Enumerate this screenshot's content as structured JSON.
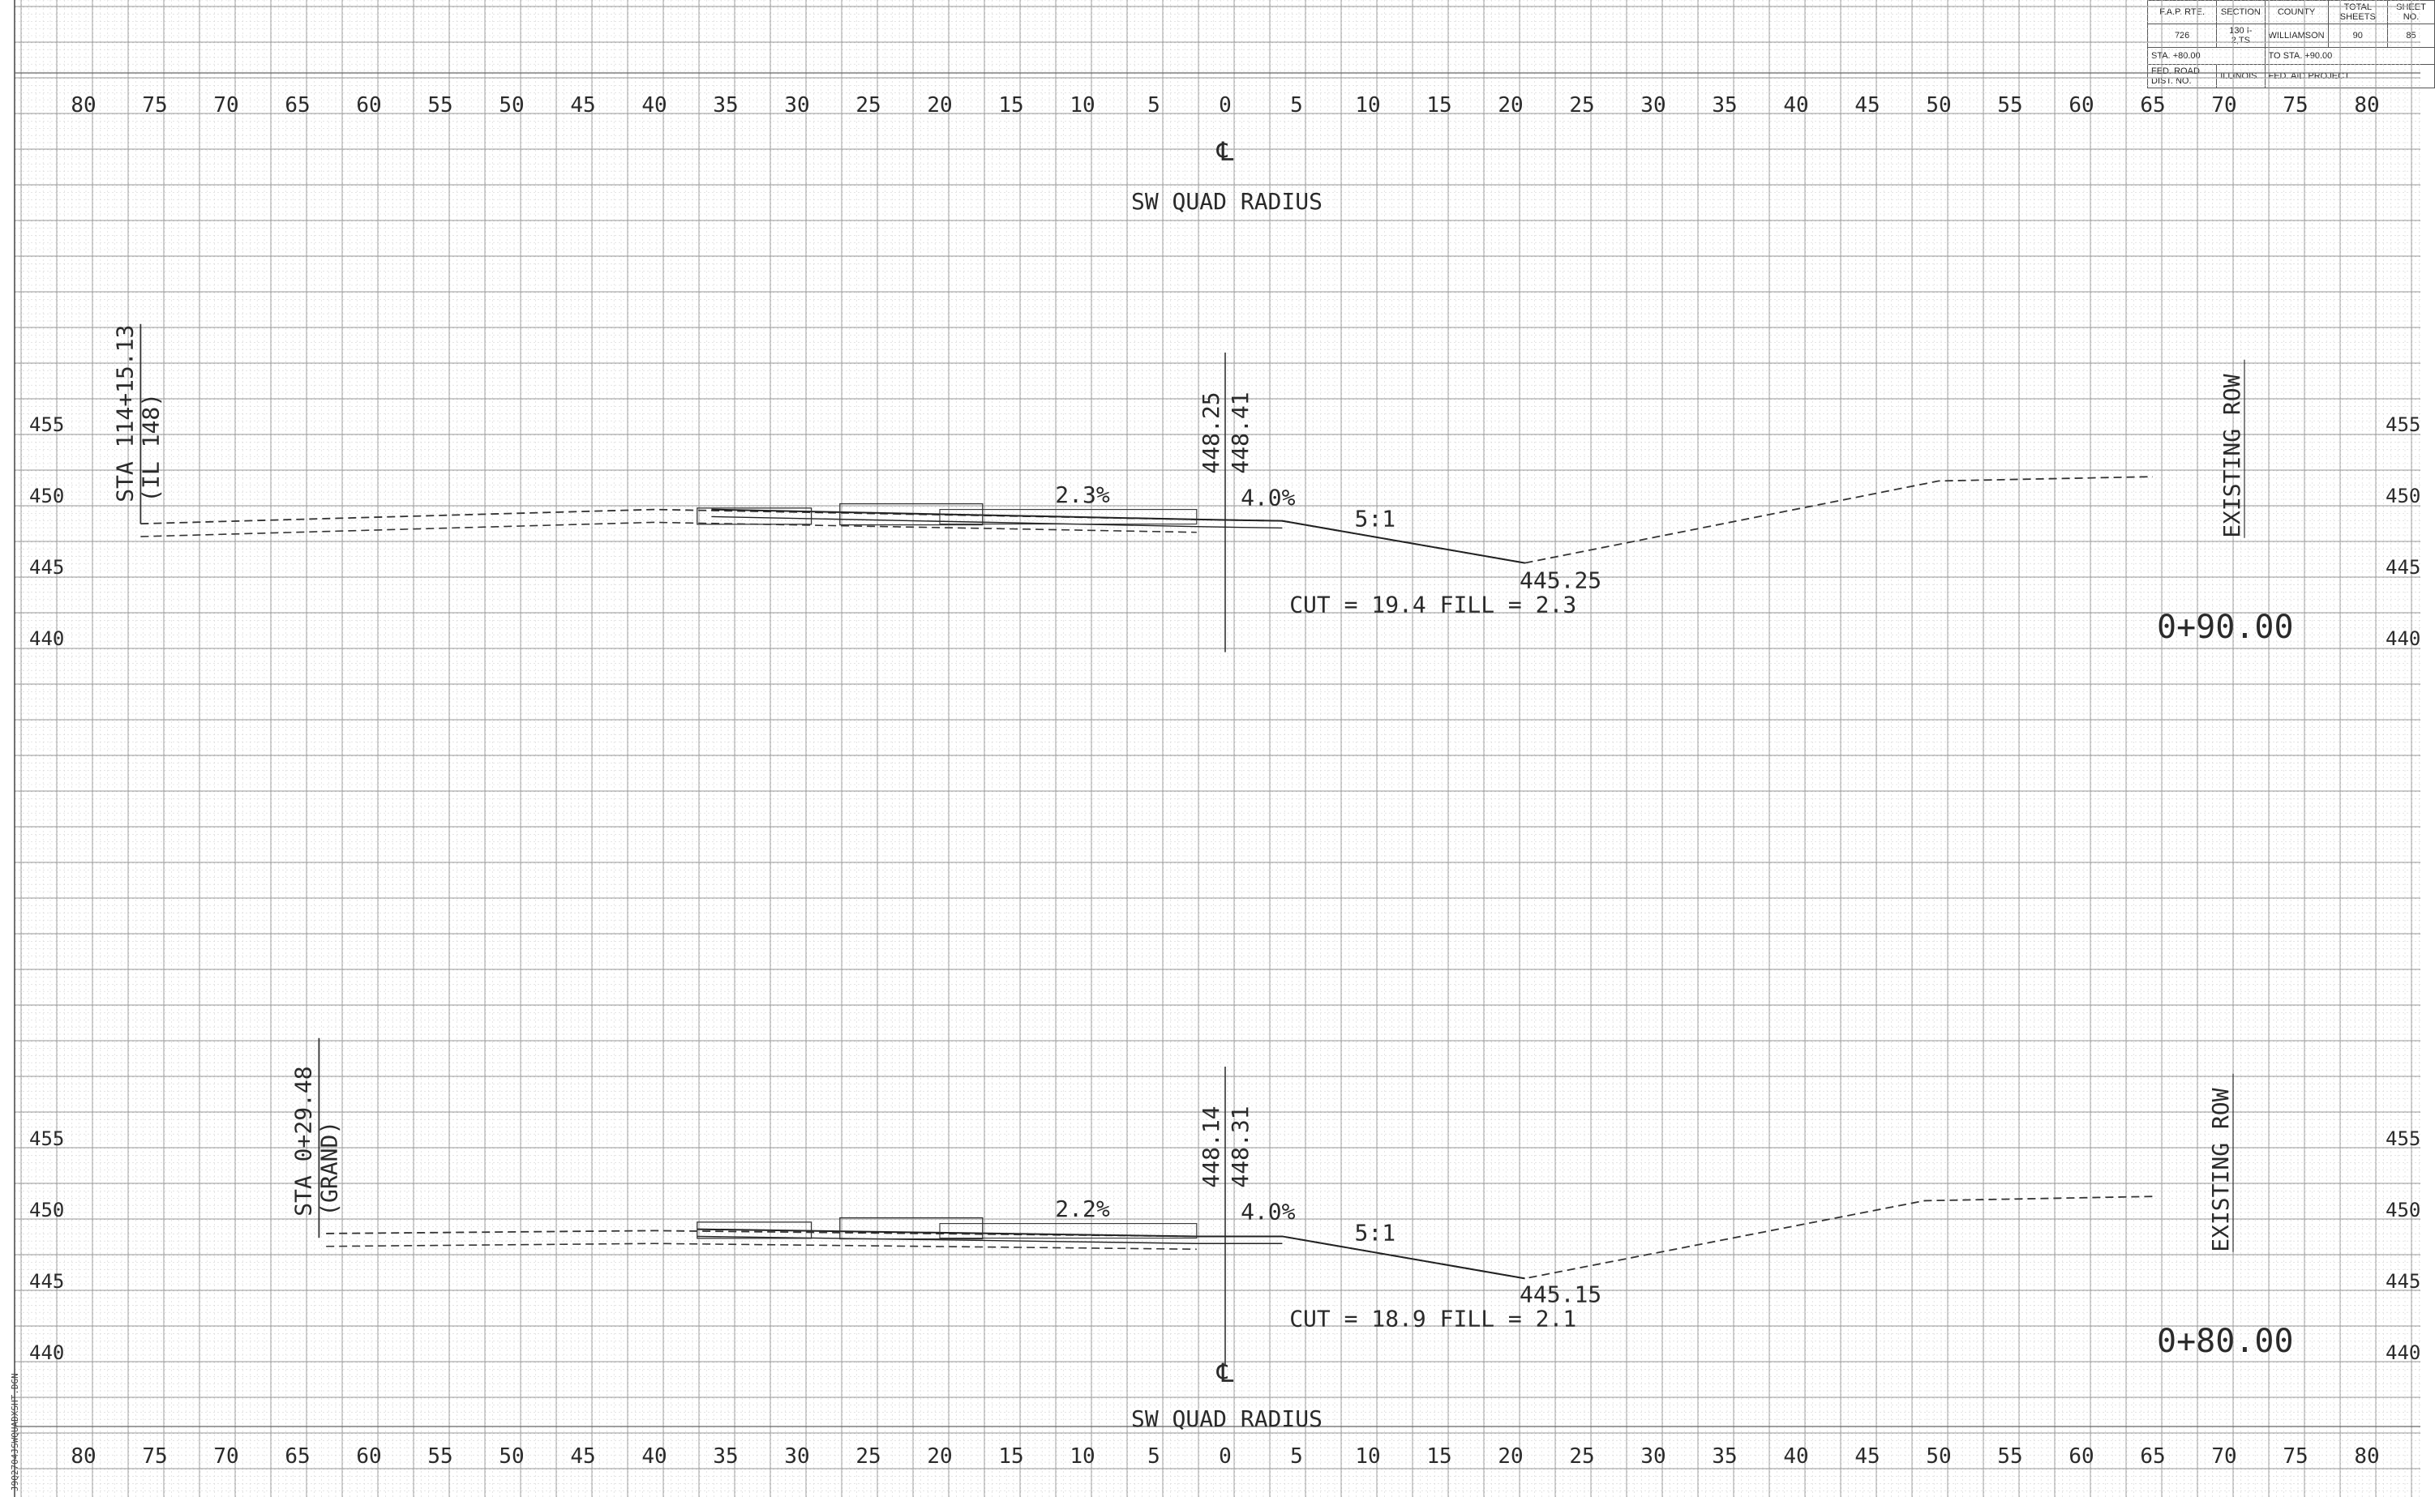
{
  "title_block": {
    "headers": {
      "route": "F.A.P. RTE.",
      "section": "SECTION",
      "county": "COUNTY",
      "total_sheets": "TOTAL SHEETS",
      "sheet_no": "SHEET NO."
    },
    "values": {
      "route": "726",
      "section": "130 I-2,TS",
      "county": "WILLIAMSON",
      "total_sheets": "90",
      "sheet_no": "85"
    },
    "station_from": "STA. +80.00",
    "station_to": "TO STA. +90.00",
    "district": "FED. ROAD DIST. NO.",
    "state": "ILLINOIS",
    "project": "FED. AID PROJECT"
  },
  "file_label": "J9Q2704JSWQUADXSHT.DGN",
  "offset_scale": {
    "labels": [
      "80",
      "75",
      "70",
      "65",
      "60",
      "55",
      "50",
      "45",
      "40",
      "35",
      "30",
      "25",
      "20",
      "15",
      "10",
      "5",
      "0",
      "5",
      "10",
      "15",
      "20",
      "25",
      "30",
      "35",
      "40",
      "45",
      "50",
      "55",
      "60",
      "65",
      "70",
      "75",
      "80"
    ]
  },
  "top_caption": {
    "centerline": "℄",
    "title": "SW QUAD RADIUS"
  },
  "bottom_caption": {
    "centerline": "℄",
    "title": "SW QUAD RADIUS"
  },
  "cross_sections": [
    {
      "station_label": "STA 114+15.13",
      "road_label": "(IL 148)",
      "elev_center_left": "448.25",
      "elev_center_right": "448.41",
      "slope_left": "2.3%",
      "slope_right": "4.0%",
      "side_slope": "5:1",
      "ditch_elev": "445.25",
      "cut_fill": "CUT = 19.4   FILL = 2.3",
      "row_label": "EXISTING ROW",
      "station": "0+90.00",
      "elevation_labels": [
        "455",
        "450",
        "445",
        "440"
      ],
      "existing_ground": [
        [
          -76,
          448.0
        ],
        [
          -40,
          449.0
        ],
        [
          -2,
          448.3
        ],
        [
          4,
          448.2
        ],
        [
          21,
          445.25
        ],
        [
          50,
          451.0
        ],
        [
          65,
          451.3
        ]
      ],
      "proposed_top": [
        [
          -36,
          449.0
        ],
        [
          -2,
          448.3
        ],
        [
          4,
          448.2
        ],
        [
          21,
          445.25
        ]
      ]
    },
    {
      "station_label": "STA 0+29.48",
      "road_label": "(GRAND)",
      "elev_center_left": "448.14",
      "elev_center_right": "448.31",
      "slope_left": "2.2%",
      "slope_right": "4.0%",
      "side_slope": "5:1",
      "ditch_elev": "445.15",
      "cut_fill": "CUT = 18.9   FILL = 2.1",
      "row_label": "EXISTING ROW",
      "station": "0+80.00",
      "elevation_labels": [
        "455",
        "450",
        "445",
        "440"
      ],
      "existing_ground": [
        [
          -63,
          448.3
        ],
        [
          -40,
          448.5
        ],
        [
          -2,
          448.1
        ],
        [
          4,
          448.1
        ],
        [
          21,
          445.15
        ],
        [
          49,
          450.6
        ],
        [
          65,
          450.9
        ]
      ],
      "proposed_top": [
        [
          -37,
          448.6
        ],
        [
          -2,
          448.1
        ],
        [
          4,
          448.1
        ],
        [
          21,
          445.15
        ]
      ]
    }
  ]
}
